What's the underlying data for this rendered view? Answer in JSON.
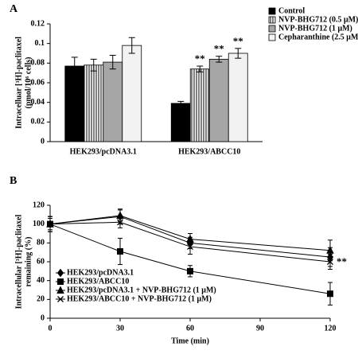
{
  "chart_data": [
    {
      "type": "bar",
      "panel": "A",
      "y_label": [
        "Intracelluar [³H]-paclitaxel",
        "(pmol/10⁶ cells)"
      ],
      "categories": [
        "HEK293/pcDNA3.1",
        "HEK293/ABCC10"
      ],
      "series": [
        {
          "name": "Control",
          "color": "#000000",
          "values": [
            0.077,
            0.039
          ],
          "errors": [
            0.009,
            0.002
          ],
          "significance": [
            null,
            null
          ]
        },
        {
          "name": "NVP-BHG712 (0.5 μM)",
          "color": "#ffffff",
          "hatch": "vertical",
          "values": [
            0.078,
            0.074
          ],
          "errors": [
            0.006,
            0.003
          ],
          "significance": [
            null,
            "**"
          ]
        },
        {
          "name": "NVP-BHG712 (1 μM)",
          "color": "#a6a6a6",
          "values": [
            0.081,
            0.084
          ],
          "errors": [
            0.007,
            0.003
          ],
          "significance": [
            null,
            "**"
          ]
        },
        {
          "name": "Cepharanthine (2.5 μM)",
          "color": "#f2f2f2",
          "values": [
            0.098,
            0.09
          ],
          "errors": [
            0.008,
            0.005
          ],
          "significance": [
            null,
            "**"
          ]
        }
      ],
      "ylim": [
        0,
        0.12
      ],
      "yticks": [
        0,
        0.02,
        0.04,
        0.06,
        0.08,
        0.1,
        0.12
      ],
      "legend": "upper right"
    },
    {
      "type": "line",
      "panel": "B",
      "x_label": "Time (min)",
      "y_label": [
        "Intracellular [³H]-paclitaxel",
        "remaining (%)"
      ],
      "x": [
        0,
        30,
        60,
        120
      ],
      "series": [
        {
          "name": "HEK293/pcDNA3.1",
          "color": "#000000",
          "marker": "diamond",
          "values": [
            100,
            108,
            80,
            65
          ],
          "errors": [
            8,
            8,
            6,
            10
          ],
          "significance": [
            null,
            null,
            null,
            null
          ]
        },
        {
          "name": "HEK293/ABCC10",
          "color": "#000000",
          "marker": "square",
          "values": [
            100,
            71,
            50,
            26
          ],
          "errors": [
            6,
            14,
            6,
            12
          ],
          "significance": [
            null,
            null,
            null,
            null
          ]
        },
        {
          "name": "HEK293/pcDNA3.1 + NVP-BHG712 (1 μM)",
          "color": "#000000",
          "marker": "triangle",
          "values": [
            100,
            109,
            84,
            72
          ],
          "errors": [
            8,
            6,
            6,
            11
          ],
          "significance": [
            null,
            null,
            null,
            null
          ]
        },
        {
          "name": "HEK293/ABCC10 + NVP-BHG712 (1 μM)",
          "color": "#000000",
          "marker": "x",
          "values": [
            100,
            102,
            76,
            60
          ],
          "errors": [
            8,
            6,
            8,
            8
          ],
          "significance": [
            null,
            null,
            null,
            "**"
          ]
        }
      ],
      "xlim": [
        0,
        120
      ],
      "xticks": [
        0,
        30,
        60,
        90,
        120
      ],
      "ylim": [
        0,
        120
      ],
      "yticks": [
        0,
        20,
        40,
        60,
        80,
        100,
        120
      ],
      "legend": "lower left"
    }
  ]
}
